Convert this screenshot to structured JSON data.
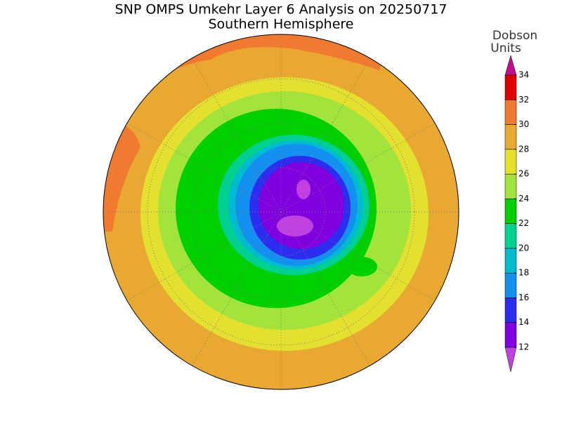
{
  "title": "SNP OMPS Umkehr Layer 6 Analysis on 20250717",
  "subtitle": "Southern Hemisphere",
  "colorbar": {
    "label_lines": [
      "Dobson",
      "Units"
    ],
    "ticks": [
      12,
      14,
      16,
      18,
      20,
      22,
      24,
      26,
      28,
      30,
      32,
      34
    ],
    "colors": [
      "#8000e0",
      "#2d2df0",
      "#1490f0",
      "#00bcd0",
      "#00d090",
      "#00d000",
      "#a2e43c",
      "#e4e030",
      "#e8a832",
      "#f07a30",
      "#e00000"
    ],
    "under_color": "#c040e0",
    "over_color": "#c0108f"
  }
}
